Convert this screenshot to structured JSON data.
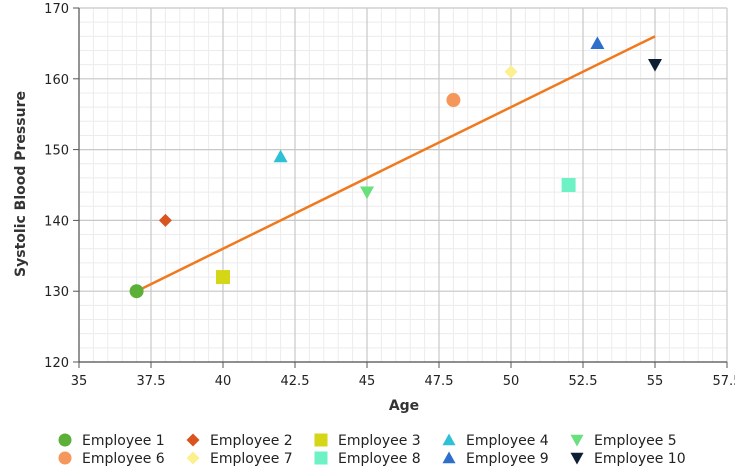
{
  "chart_data": {
    "type": "scatter",
    "title": "",
    "xlabel": "Age",
    "ylabel": "Systolic Blood Pressure",
    "xlim": [
      35,
      57.5
    ],
    "ylim": [
      120,
      170
    ],
    "x_ticks": [
      35,
      37.5,
      40,
      42.5,
      45,
      47.5,
      50,
      52.5,
      55,
      57.5
    ],
    "y_ticks": [
      120,
      130,
      140,
      150,
      160,
      170
    ],
    "grid": true,
    "series": [
      {
        "name": "Employee 1",
        "x": 37,
        "y": 130,
        "color": "#5cb037",
        "marker": "circle"
      },
      {
        "name": "Employee 2",
        "x": 38,
        "y": 140,
        "color": "#d9541e",
        "marker": "diamond"
      },
      {
        "name": "Employee 3",
        "x": 40,
        "y": 132,
        "color": "#d6d619",
        "marker": "square"
      },
      {
        "name": "Employee 4",
        "x": 42,
        "y": 149,
        "color": "#2ec1d6",
        "marker": "triangle-up"
      },
      {
        "name": "Employee 5",
        "x": 45,
        "y": 144,
        "color": "#69e07c",
        "marker": "triangle-down"
      },
      {
        "name": "Employee 6",
        "x": 48,
        "y": 157,
        "color": "#f5975b",
        "marker": "circle"
      },
      {
        "name": "Employee 7",
        "x": 50,
        "y": 161,
        "color": "#fbef8e",
        "marker": "diamond"
      },
      {
        "name": "Employee 8",
        "x": 52,
        "y": 145,
        "color": "#6df2c6",
        "marker": "square"
      },
      {
        "name": "Employee 9",
        "x": 53,
        "y": 165,
        "color": "#2e6fcb",
        "marker": "triangle-up"
      },
      {
        "name": "Employee 10",
        "x": 55,
        "y": 162,
        "color": "#0f1f33",
        "marker": "triangle-down"
      }
    ],
    "trendline": {
      "x": [
        37,
        55
      ],
      "y": [
        130,
        166
      ],
      "color": "#f0791e"
    },
    "legend_position": "bottom"
  }
}
